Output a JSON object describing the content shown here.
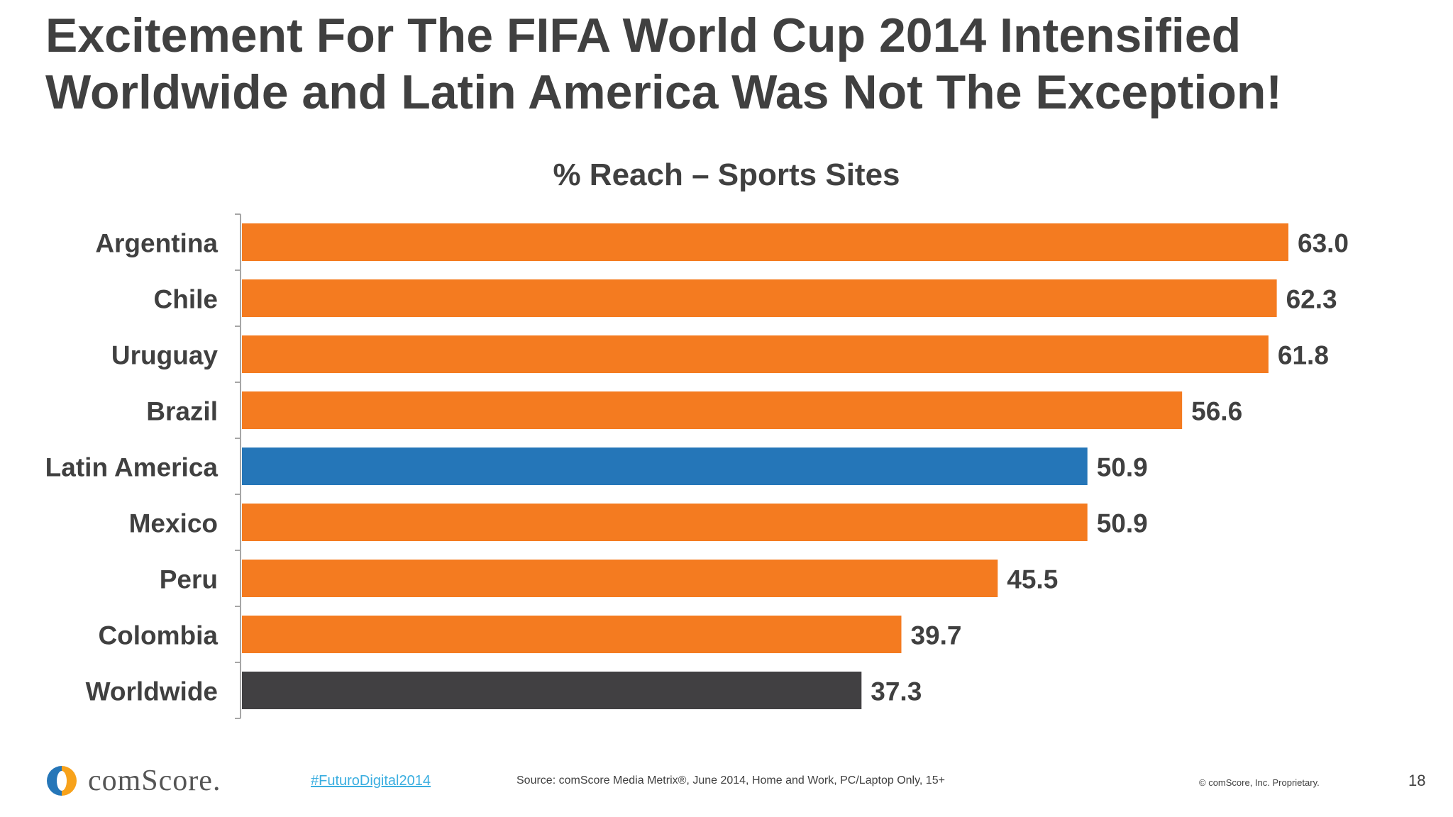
{
  "slide": {
    "title_line1": "Excitement For The FIFA World Cup 2014 Intensified",
    "title_line2": "Worldwide and Latin America Was Not The Exception!",
    "page_number": "18"
  },
  "footer": {
    "logo_text": "comScore.",
    "hashtag": "#FuturoDigital2014",
    "source": "Source: comScore Media Metrix®, June 2014, Home and Work, PC/Laptop Only, 15+",
    "copyright": "© comScore, Inc. Proprietary."
  },
  "colors": {
    "default_bar": "#f47b20",
    "latin_america_bar": "#2576b8",
    "worldwide_bar": "#414042",
    "text": "#404040",
    "hashtag": "#3aaee0"
  },
  "chart_data": {
    "type": "bar",
    "orientation": "horizontal",
    "title": "% Reach – Sports Sites",
    "categories": [
      "Argentina",
      "Chile",
      "Uruguay",
      "Brazil",
      "Latin America",
      "Mexico",
      "Peru",
      "Colombia",
      "Worldwide"
    ],
    "values": [
      63.0,
      62.3,
      61.8,
      56.6,
      50.9,
      50.9,
      45.5,
      39.7,
      37.3
    ],
    "value_labels": [
      "63.0",
      "62.3",
      "61.8",
      "56.6",
      "50.9",
      "50.9",
      "45.5",
      "39.7",
      "37.3"
    ],
    "bar_colors": [
      "#f47b20",
      "#f47b20",
      "#f47b20",
      "#f47b20",
      "#2576b8",
      "#f47b20",
      "#f47b20",
      "#f47b20",
      "#414042"
    ],
    "xlim": [
      0,
      63
    ],
    "grid": false,
    "legend": "none"
  }
}
